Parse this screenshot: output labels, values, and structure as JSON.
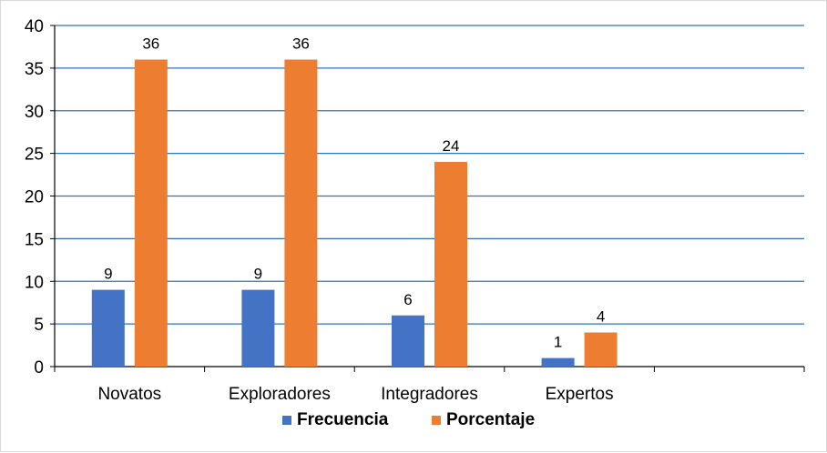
{
  "chart_data": {
    "type": "bar",
    "categories": [
      "Novatos",
      "Exploradores",
      "Integradores",
      "Expertos",
      ""
    ],
    "series": [
      {
        "name": "Frecuencia",
        "values": [
          9,
          9,
          6,
          1,
          null
        ],
        "color": "#4472C4"
      },
      {
        "name": "Porcentaje",
        "values": [
          36,
          36,
          24,
          4,
          null
        ],
        "color": "#ED7D31"
      }
    ],
    "ylim": [
      0,
      40
    ],
    "yticks": [
      0,
      5,
      10,
      15,
      20,
      25,
      30,
      35,
      40
    ],
    "grid": true,
    "gridline_color": "#2E74B5",
    "data_labels": true,
    "legend_position": "bottom"
  }
}
